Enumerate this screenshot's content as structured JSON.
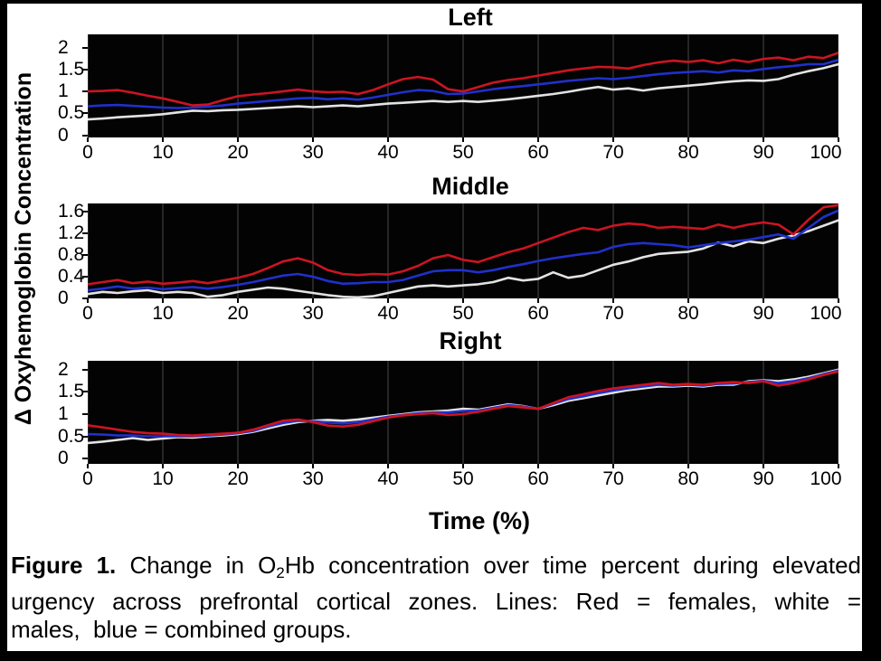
{
  "page": {
    "background": "#ffffff",
    "frame_color": "#000000"
  },
  "figure": {
    "y_axis_label": "Δ Oxyhemoglobin Concentration",
    "x_axis_label": "Time (%)"
  },
  "legend": {
    "red_line": "females",
    "white_line": "males",
    "blue_line": "combined groups"
  },
  "colors": {
    "females_red": "#cc1422",
    "males_white": "#e3e3e3",
    "combined_blue": "#2030cc",
    "plot_background": "#030303",
    "gridline": "#262626",
    "text": "#000000"
  },
  "caption": {
    "label_bold": "Figure 1.",
    "line1_pre_sub": " Change in O",
    "line1_sub": "2",
    "line1_post_sub": "Hb concentration over time percent during elevated",
    "line2": "urgency across prefrontal cortical zones. Lines: Red = females, white =",
    "line3": "males,  blue = combined groups."
  },
  "chart_data": [
    {
      "type": "line",
      "title": "Left",
      "xlabel": "Time (%)",
      "ylabel": "Δ Oxyhemoglobin Concentration",
      "xlim": [
        0,
        100
      ],
      "ylim": [
        -0.05,
        2.3
      ],
      "x_ticks": [
        0,
        10,
        20,
        30,
        40,
        50,
        60,
        70,
        80,
        90,
        100
      ],
      "y_ticks": [
        0,
        0.5,
        1,
        1.5,
        2
      ],
      "x_start": 0,
      "x_step": 2,
      "grid": "vertical-faint",
      "series": [
        {
          "name": "males",
          "color": "#e3e3e3",
          "values": [
            0.36,
            0.38,
            0.41,
            0.43,
            0.45,
            0.48,
            0.52,
            0.56,
            0.55,
            0.57,
            0.58,
            0.6,
            0.62,
            0.64,
            0.66,
            0.64,
            0.66,
            0.68,
            0.66,
            0.69,
            0.72,
            0.74,
            0.76,
            0.78,
            0.76,
            0.78,
            0.76,
            0.79,
            0.82,
            0.86,
            0.9,
            0.94,
            0.99,
            1.05,
            1.1,
            1.04,
            1.07,
            1.02,
            1.07,
            1.1,
            1.13,
            1.16,
            1.2,
            1.23,
            1.25,
            1.24,
            1.28,
            1.38,
            1.46,
            1.53,
            1.62
          ]
        },
        {
          "name": "combined",
          "color": "#2030cc",
          "values": [
            0.66,
            0.68,
            0.69,
            0.67,
            0.65,
            0.63,
            0.62,
            0.63,
            0.65,
            0.68,
            0.72,
            0.75,
            0.78,
            0.81,
            0.84,
            0.85,
            0.82,
            0.84,
            0.81,
            0.86,
            0.92,
            0.98,
            1.03,
            1.01,
            0.94,
            0.95,
            1.0,
            1.05,
            1.09,
            1.12,
            1.16,
            1.2,
            1.24,
            1.27,
            1.3,
            1.28,
            1.31,
            1.35,
            1.39,
            1.42,
            1.44,
            1.46,
            1.43,
            1.48,
            1.46,
            1.51,
            1.55,
            1.58,
            1.62,
            1.62,
            1.72
          ]
        },
        {
          "name": "females",
          "color": "#cc1422",
          "values": [
            1.0,
            1.01,
            1.03,
            0.97,
            0.9,
            0.84,
            0.76,
            0.68,
            0.7,
            0.8,
            0.89,
            0.93,
            0.96,
            1.0,
            1.04,
            1.0,
            0.98,
            0.99,
            0.94,
            1.03,
            1.16,
            1.28,
            1.33,
            1.27,
            1.05,
            1.0,
            1.1,
            1.2,
            1.26,
            1.3,
            1.36,
            1.42,
            1.48,
            1.52,
            1.56,
            1.55,
            1.52,
            1.6,
            1.66,
            1.7,
            1.67,
            1.71,
            1.64,
            1.72,
            1.67,
            1.74,
            1.77,
            1.71,
            1.79,
            1.76,
            1.88
          ]
        }
      ]
    },
    {
      "type": "line",
      "title": "Middle",
      "xlabel": "Time (%)",
      "ylabel": "Δ Oxyhemoglobin Concentration",
      "xlim": [
        0,
        100
      ],
      "ylim": [
        0,
        1.75
      ],
      "x_ticks": [
        0,
        10,
        20,
        30,
        40,
        50,
        60,
        70,
        80,
        90,
        100
      ],
      "y_ticks": [
        0,
        0.4,
        0.8,
        1.2,
        1.6
      ],
      "x_start": 0,
      "x_step": 2,
      "grid": "vertical-faint",
      "series": [
        {
          "name": "males",
          "color": "#e3e3e3",
          "values": [
            0.08,
            0.12,
            0.1,
            0.13,
            0.15,
            0.1,
            0.12,
            0.1,
            0.03,
            0.06,
            0.12,
            0.16,
            0.2,
            0.18,
            0.14,
            0.1,
            0.06,
            0.03,
            0.02,
            0.04,
            0.1,
            0.16,
            0.22,
            0.24,
            0.22,
            0.24,
            0.26,
            0.3,
            0.38,
            0.33,
            0.36,
            0.48,
            0.38,
            0.42,
            0.52,
            0.62,
            0.68,
            0.76,
            0.82,
            0.84,
            0.86,
            0.92,
            1.03,
            0.96,
            1.05,
            1.02,
            1.1,
            1.16,
            1.24,
            1.34,
            1.44
          ]
        },
        {
          "name": "combined",
          "color": "#2030cc",
          "values": [
            0.15,
            0.18,
            0.22,
            0.18,
            0.2,
            0.17,
            0.19,
            0.21,
            0.18,
            0.21,
            0.25,
            0.3,
            0.36,
            0.42,
            0.45,
            0.4,
            0.32,
            0.27,
            0.28,
            0.3,
            0.3,
            0.34,
            0.42,
            0.5,
            0.52,
            0.52,
            0.48,
            0.52,
            0.58,
            0.63,
            0.69,
            0.74,
            0.78,
            0.82,
            0.85,
            0.95,
            1.0,
            1.02,
            1.0,
            0.98,
            0.94,
            0.98,
            1.02,
            1.05,
            1.08,
            1.13,
            1.18,
            1.1,
            1.3,
            1.5,
            1.62
          ]
        },
        {
          "name": "females",
          "color": "#cc1422",
          "values": [
            0.26,
            0.3,
            0.34,
            0.28,
            0.31,
            0.27,
            0.29,
            0.32,
            0.28,
            0.33,
            0.38,
            0.45,
            0.56,
            0.68,
            0.74,
            0.66,
            0.52,
            0.45,
            0.43,
            0.45,
            0.44,
            0.5,
            0.6,
            0.74,
            0.8,
            0.71,
            0.67,
            0.76,
            0.85,
            0.92,
            1.02,
            1.12,
            1.22,
            1.3,
            1.26,
            1.34,
            1.38,
            1.36,
            1.3,
            1.32,
            1.3,
            1.28,
            1.36,
            1.3,
            1.36,
            1.4,
            1.36,
            1.18,
            1.45,
            1.68,
            1.72
          ]
        }
      ]
    },
    {
      "type": "line",
      "title": "Right",
      "xlabel": "Time (%)",
      "ylabel": "Δ Oxyhemoglobin Concentration",
      "xlim": [
        0,
        100
      ],
      "ylim": [
        -0.12,
        2.2
      ],
      "x_ticks": [
        0,
        10,
        20,
        30,
        40,
        50,
        60,
        70,
        80,
        90,
        100
      ],
      "y_ticks": [
        0,
        0.5,
        1,
        1.5,
        2
      ],
      "x_start": 0,
      "x_step": 2,
      "grid": "vertical-faint",
      "series": [
        {
          "name": "males",
          "color": "#e3e3e3",
          "values": [
            0.35,
            0.38,
            0.42,
            0.46,
            0.42,
            0.45,
            0.48,
            0.47,
            0.5,
            0.52,
            0.55,
            0.6,
            0.68,
            0.76,
            0.82,
            0.85,
            0.87,
            0.85,
            0.88,
            0.92,
            0.96,
            1.0,
            1.04,
            1.06,
            1.08,
            1.12,
            1.1,
            1.16,
            1.22,
            1.18,
            1.12,
            1.2,
            1.3,
            1.36,
            1.42,
            1.48,
            1.54,
            1.58,
            1.62,
            1.62,
            1.64,
            1.62,
            1.66,
            1.66,
            1.74,
            1.76,
            1.74,
            1.78,
            1.84,
            1.92,
            2.0
          ]
        },
        {
          "name": "combined",
          "color": "#2030cc",
          "values": [
            0.55,
            0.54,
            0.52,
            0.52,
            0.5,
            0.5,
            0.5,
            0.5,
            0.52,
            0.54,
            0.57,
            0.62,
            0.72,
            0.8,
            0.85,
            0.84,
            0.81,
            0.79,
            0.82,
            0.88,
            0.94,
            0.98,
            1.02,
            1.04,
            1.04,
            1.07,
            1.08,
            1.14,
            1.2,
            1.17,
            1.12,
            1.23,
            1.34,
            1.4,
            1.47,
            1.53,
            1.58,
            1.62,
            1.66,
            1.64,
            1.66,
            1.64,
            1.68,
            1.69,
            1.72,
            1.75,
            1.7,
            1.74,
            1.81,
            1.9,
            1.98
          ]
        },
        {
          "name": "females",
          "color": "#cc1422",
          "values": [
            0.75,
            0.7,
            0.65,
            0.6,
            0.57,
            0.56,
            0.53,
            0.52,
            0.54,
            0.56,
            0.58,
            0.65,
            0.75,
            0.85,
            0.88,
            0.82,
            0.74,
            0.72,
            0.76,
            0.84,
            0.92,
            0.97,
            1.0,
            1.02,
            0.98,
            1.0,
            1.05,
            1.12,
            1.18,
            1.15,
            1.12,
            1.25,
            1.38,
            1.45,
            1.52,
            1.58,
            1.62,
            1.66,
            1.7,
            1.66,
            1.68,
            1.66,
            1.7,
            1.72,
            1.7,
            1.74,
            1.64,
            1.7,
            1.78,
            1.88,
            1.96
          ]
        }
      ]
    }
  ]
}
